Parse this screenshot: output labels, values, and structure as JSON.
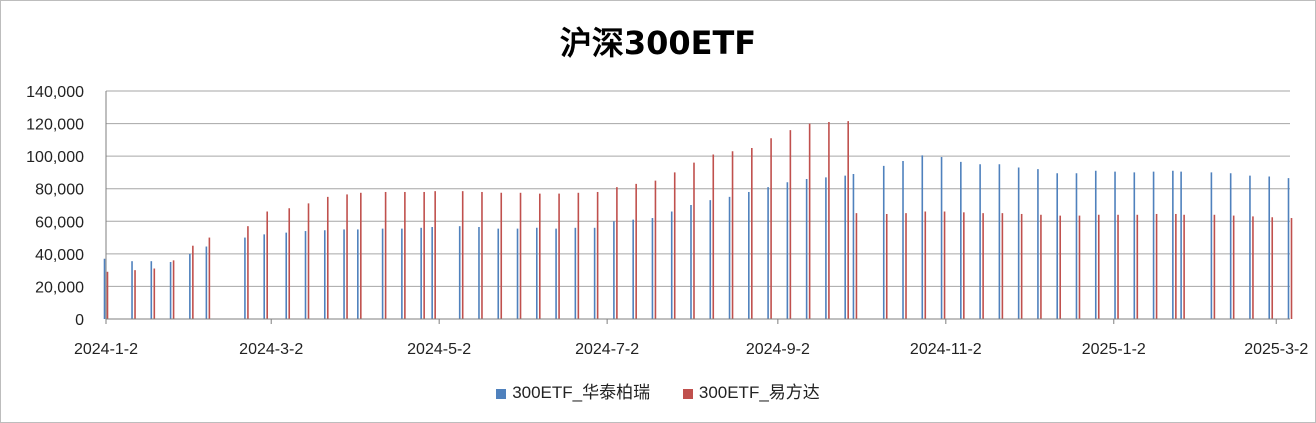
{
  "chart_data": {
    "type": "bar",
    "title": "沪深300ETF",
    "xlabel": "",
    "ylabel": "",
    "ylim": [
      0,
      140000
    ],
    "yticks": [
      0,
      20000,
      40000,
      60000,
      80000,
      100000,
      120000,
      140000
    ],
    "ytick_labels": [
      "0",
      "20,000",
      "40,000",
      "60,000",
      "80,000",
      "100,000",
      "120,000",
      "140,000"
    ],
    "x_start": "2024-01-02",
    "x_end": "2025-03-07",
    "xtick_dates": [
      "2024-01-02",
      "2024-03-02",
      "2024-05-02",
      "2024-07-02",
      "2024-09-02",
      "2024-11-02",
      "2025-01-02",
      "2025-03-02"
    ],
    "xtick_labels": [
      "2024-1-2",
      "2024-3-2",
      "2024-5-2",
      "2024-7-2",
      "2024-9-2",
      "2024-11-2",
      "2025-1-2",
      "2025-3-2"
    ],
    "grid": true,
    "legend_position": "bottom",
    "series": [
      {
        "name": "300ETF_华泰柏瑞",
        "color": "#4F81BD",
        "points": [
          [
            "2024-01-02",
            37000
          ],
          [
            "2024-01-12",
            35500
          ],
          [
            "2024-01-19",
            35500
          ],
          [
            "2024-01-26",
            35000
          ],
          [
            "2024-02-02",
            40000
          ],
          [
            "2024-02-08",
            44500
          ],
          [
            "2024-02-22",
            50000
          ],
          [
            "2024-02-29",
            52000
          ],
          [
            "2024-03-08",
            53000
          ],
          [
            "2024-03-15",
            54000
          ],
          [
            "2024-03-22",
            54500
          ],
          [
            "2024-03-29",
            55000
          ],
          [
            "2024-04-03",
            55000
          ],
          [
            "2024-04-12",
            55500
          ],
          [
            "2024-04-19",
            55500
          ],
          [
            "2024-04-26",
            56000
          ],
          [
            "2024-04-30",
            56500
          ],
          [
            "2024-05-10",
            57000
          ],
          [
            "2024-05-17",
            56500
          ],
          [
            "2024-05-24",
            55500
          ],
          [
            "2024-05-31",
            55500
          ],
          [
            "2024-06-07",
            56000
          ],
          [
            "2024-06-14",
            55500
          ],
          [
            "2024-06-21",
            56000
          ],
          [
            "2024-06-28",
            56000
          ],
          [
            "2024-07-05",
            60000
          ],
          [
            "2024-07-12",
            61000
          ],
          [
            "2024-07-19",
            62000
          ],
          [
            "2024-07-26",
            66000
          ],
          [
            "2024-08-02",
            70000
          ],
          [
            "2024-08-09",
            73000
          ],
          [
            "2024-08-16",
            75000
          ],
          [
            "2024-08-23",
            78000
          ],
          [
            "2024-08-30",
            81000
          ],
          [
            "2024-09-06",
            84000
          ],
          [
            "2024-09-13",
            86000
          ],
          [
            "2024-09-20",
            87000
          ],
          [
            "2024-09-27",
            88000
          ],
          [
            "2024-09-30",
            89000
          ],
          [
            "2024-10-11",
            94000
          ],
          [
            "2024-10-18",
            97000
          ],
          [
            "2024-10-25",
            100500
          ],
          [
            "2024-11-01",
            99500
          ],
          [
            "2024-11-08",
            96500
          ],
          [
            "2024-11-15",
            95000
          ],
          [
            "2024-11-22",
            95000
          ],
          [
            "2024-11-29",
            93000
          ],
          [
            "2024-12-06",
            92000
          ],
          [
            "2024-12-13",
            89500
          ],
          [
            "2024-12-20",
            89500
          ],
          [
            "2024-12-27",
            91000
          ],
          [
            "2025-01-03",
            90500
          ],
          [
            "2025-01-10",
            90000
          ],
          [
            "2025-01-17",
            90500
          ],
          [
            "2025-01-24",
            91000
          ],
          [
            "2025-01-27",
            90500
          ],
          [
            "2025-02-07",
            90000
          ],
          [
            "2025-02-14",
            89500
          ],
          [
            "2025-02-21",
            88000
          ],
          [
            "2025-02-28",
            87500
          ],
          [
            "2025-03-07",
            86500
          ]
        ]
      },
      {
        "name": "300ETF_易方达",
        "color": "#C0504D",
        "points": [
          [
            "2024-01-02",
            29000
          ],
          [
            "2024-01-12",
            30000
          ],
          [
            "2024-01-19",
            31000
          ],
          [
            "2024-01-26",
            36000
          ],
          [
            "2024-02-02",
            45000
          ],
          [
            "2024-02-08",
            50000
          ],
          [
            "2024-02-22",
            57000
          ],
          [
            "2024-02-29",
            66000
          ],
          [
            "2024-03-08",
            68000
          ],
          [
            "2024-03-15",
            71000
          ],
          [
            "2024-03-22",
            75000
          ],
          [
            "2024-03-29",
            76500
          ],
          [
            "2024-04-03",
            77500
          ],
          [
            "2024-04-12",
            78000
          ],
          [
            "2024-04-19",
            78000
          ],
          [
            "2024-04-26",
            78000
          ],
          [
            "2024-04-30",
            78500
          ],
          [
            "2024-05-10",
            78500
          ],
          [
            "2024-05-17",
            78000
          ],
          [
            "2024-05-24",
            77500
          ],
          [
            "2024-05-31",
            77500
          ],
          [
            "2024-06-07",
            77000
          ],
          [
            "2024-06-14",
            77000
          ],
          [
            "2024-06-21",
            77500
          ],
          [
            "2024-06-28",
            78000
          ],
          [
            "2024-07-05",
            81000
          ],
          [
            "2024-07-12",
            83000
          ],
          [
            "2024-07-19",
            85000
          ],
          [
            "2024-07-26",
            90000
          ],
          [
            "2024-08-02",
            96000
          ],
          [
            "2024-08-09",
            101000
          ],
          [
            "2024-08-16",
            103000
          ],
          [
            "2024-08-23",
            105000
          ],
          [
            "2024-08-30",
            111000
          ],
          [
            "2024-09-06",
            116000
          ],
          [
            "2024-09-13",
            120000
          ],
          [
            "2024-09-20",
            121000
          ],
          [
            "2024-09-27",
            121500
          ],
          [
            "2024-09-30",
            65000
          ],
          [
            "2024-10-11",
            64500
          ],
          [
            "2024-10-18",
            65000
          ],
          [
            "2024-10-25",
            66000
          ],
          [
            "2024-11-01",
            66000
          ],
          [
            "2024-11-08",
            65500
          ],
          [
            "2024-11-15",
            65000
          ],
          [
            "2024-11-22",
            65000
          ],
          [
            "2024-11-29",
            64500
          ],
          [
            "2024-12-06",
            64000
          ],
          [
            "2024-12-13",
            63500
          ],
          [
            "2024-12-20",
            63500
          ],
          [
            "2024-12-27",
            64000
          ],
          [
            "2025-01-03",
            64000
          ],
          [
            "2025-01-10",
            64000
          ],
          [
            "2025-01-17",
            64500
          ],
          [
            "2025-01-24",
            64500
          ],
          [
            "2025-01-27",
            64000
          ],
          [
            "2025-02-07",
            64000
          ],
          [
            "2025-02-14",
            63500
          ],
          [
            "2025-02-21",
            63000
          ],
          [
            "2025-02-28",
            62500
          ],
          [
            "2025-03-07",
            62000
          ]
        ]
      }
    ]
  }
}
